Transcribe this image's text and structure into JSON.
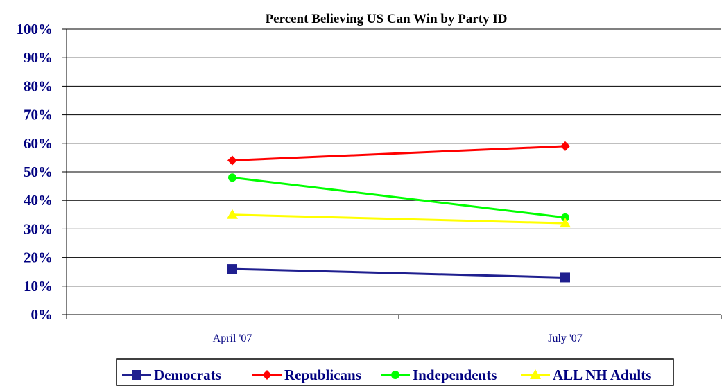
{
  "chart_data": {
    "type": "line",
    "title": "Percent Believing US Can Win by Party ID",
    "xlabel": "",
    "ylabel": "",
    "categories": [
      "April '07",
      "July '07"
    ],
    "ylim": [
      0,
      100
    ],
    "yticks": [
      "0%",
      "10%",
      "20%",
      "30%",
      "40%",
      "50%",
      "60%",
      "70%",
      "80%",
      "90%",
      "100%"
    ],
    "grid": true,
    "legend_position": "bottom",
    "series": [
      {
        "name": "Democrats",
        "values": [
          16,
          13
        ],
        "color": "#1f1f8f",
        "marker": "square"
      },
      {
        "name": "Republicans",
        "values": [
          54,
          59
        ],
        "color": "#ff0000",
        "marker": "diamond"
      },
      {
        "name": "Independents",
        "values": [
          48,
          34
        ],
        "color": "#00ff00",
        "marker": "circle"
      },
      {
        "name": "ALL NH Adults",
        "values": [
          35,
          32
        ],
        "color": "#ffff00",
        "marker": "triangle"
      }
    ]
  }
}
